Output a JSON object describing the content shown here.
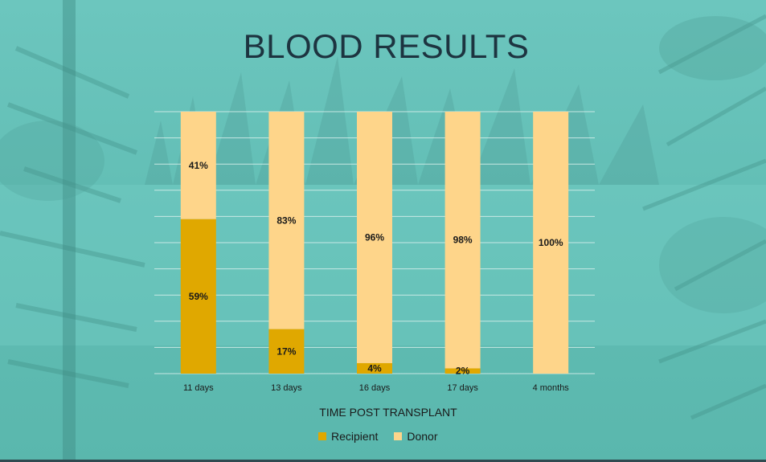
{
  "slide": {
    "title": "BLOOD RESULTS",
    "colors": {
      "background": "#63bfb6",
      "title": "#1d3440"
    }
  },
  "chart_data": {
    "type": "bar",
    "stacked": true,
    "percent_stacked": true,
    "categories": [
      "11 days",
      "13 days",
      "16 days",
      "17 days",
      "4 months"
    ],
    "series": [
      {
        "name": "Recipient",
        "values": [
          59,
          17,
          4,
          2,
          0
        ],
        "labels": [
          "59%",
          "17%",
          "4%",
          "2%",
          ""
        ],
        "color": "#e0a800"
      },
      {
        "name": "Donor",
        "values": [
          41,
          83,
          96,
          98,
          100
        ],
        "labels": [
          "41%",
          "83%",
          "96%",
          "98%",
          "100%"
        ],
        "color": "#fed58a"
      }
    ],
    "xlabel": "TIME POST TRANSPLANT",
    "ylabel": "",
    "ylim": [
      0,
      100
    ],
    "grid": true,
    "legend": "bottom"
  }
}
